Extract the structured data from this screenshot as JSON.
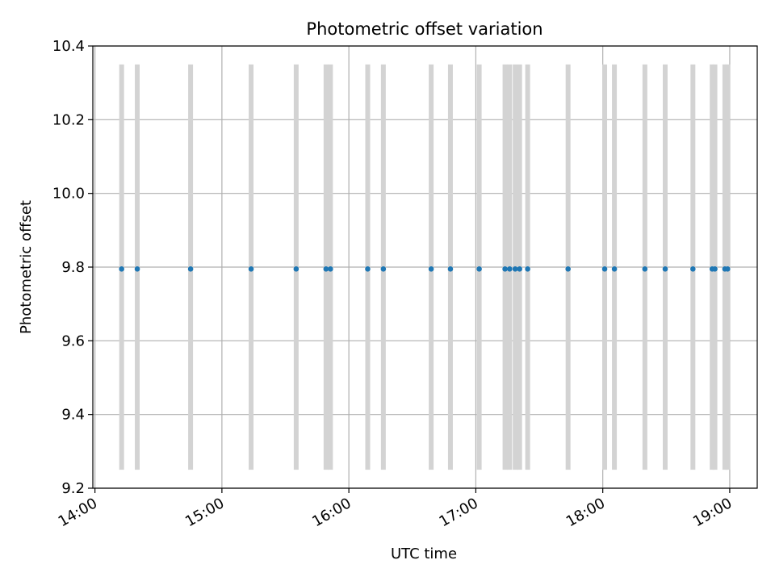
{
  "chart_data": {
    "type": "scatter",
    "title": "Photometric offset variation",
    "xlabel": "UTC time",
    "ylabel": "Photometric offset",
    "xlim": [
      "13:59",
      "19:13"
    ],
    "ylim": [
      9.2,
      10.4
    ],
    "x_ticks": [
      "14:00",
      "15:00",
      "16:00",
      "17:00",
      "18:00",
      "19:00"
    ],
    "y_ticks": [
      "9.2",
      "9.4",
      "9.6",
      "9.8",
      "10.0",
      "10.2",
      "10.4"
    ],
    "grid": true,
    "marker_color": "#1f77b4",
    "band_color": "#d3d3d3",
    "band_range": [
      9.25,
      10.35
    ],
    "points": [
      {
        "x": "14:12.6",
        "y": 9.795
      },
      {
        "x": "14:20.0",
        "y": 9.795
      },
      {
        "x": "14:45.2",
        "y": 9.795
      },
      {
        "x": "15:13.8",
        "y": 9.795
      },
      {
        "x": "15:35.1",
        "y": 9.795
      },
      {
        "x": "15:49.2",
        "y": 9.795
      },
      {
        "x": "15:51.3",
        "y": 9.795
      },
      {
        "x": "16:08.9",
        "y": 9.795
      },
      {
        "x": "16:16.3",
        "y": 9.795
      },
      {
        "x": "16:38.9",
        "y": 9.795
      },
      {
        "x": "16:48.0",
        "y": 9.795
      },
      {
        "x": "17:01.6",
        "y": 9.795
      },
      {
        "x": "17:13.8",
        "y": 9.795
      },
      {
        "x": "17:16.0",
        "y": 9.795
      },
      {
        "x": "17:18.6",
        "y": 9.795
      },
      {
        "x": "17:20.7",
        "y": 9.795
      },
      {
        "x": "17:24.5",
        "y": 9.795
      },
      {
        "x": "17:43.6",
        "y": 9.795
      },
      {
        "x": "18:00.9",
        "y": 9.795
      },
      {
        "x": "18:05.5",
        "y": 9.795
      },
      {
        "x": "18:19.9",
        "y": 9.795
      },
      {
        "x": "18:29.5",
        "y": 9.795
      },
      {
        "x": "18:42.6",
        "y": 9.795
      },
      {
        "x": "18:51.7",
        "y": 9.795
      },
      {
        "x": "18:53.0",
        "y": 9.795
      },
      {
        "x": "18:57.7",
        "y": 9.795
      },
      {
        "x": "18:59.0",
        "y": 9.795
      }
    ]
  }
}
